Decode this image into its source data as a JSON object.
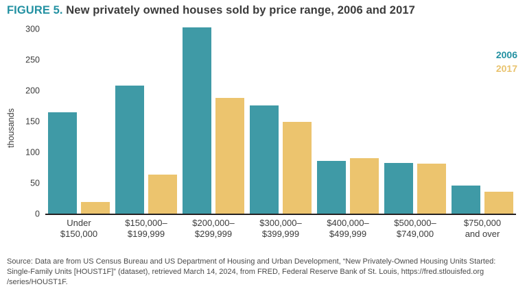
{
  "title": {
    "prefix": "FIGURE 5.",
    "text": " New privately owned houses sold by price range, 2006 and 2017"
  },
  "colors": {
    "teal": "#3f9aa6",
    "gold": "#ecc46e",
    "axis": "#231f20"
  },
  "legend": [
    {
      "label": "2006",
      "color": "#2391a2"
    },
    {
      "label": "2017",
      "color": "#e9c36e"
    }
  ],
  "chart_data": {
    "type": "bar",
    "title": "New privately owned houses sold by price range, 2006 and 2017",
    "ylabel": "thousands",
    "xlabel": "",
    "ylim": [
      0,
      300
    ],
    "yticks": [
      0,
      50,
      100,
      150,
      200,
      250,
      300
    ],
    "grid": false,
    "legend_position": "top-right",
    "categories": [
      "Under\n$150,000",
      "$150,000–\n$199,999",
      "$200,000–\n$299,999",
      "$300,000–\n$399,999",
      "$400,000–\n$499,999",
      "$500,000–\n$749,000",
      "$750,000\nand over"
    ],
    "series": [
      {
        "name": "2006",
        "color": "#3f9aa6",
        "values": [
          164,
          208,
          302,
          176,
          86,
          82,
          45
        ]
      },
      {
        "name": "2017",
        "color": "#ecc46e",
        "values": [
          19,
          63,
          188,
          149,
          90,
          81,
          35
        ]
      }
    ]
  },
  "source": "Source: Data are from US Census Bureau and US Department of Housing and Urban Development, “New Privately-Owned Housing Units Started: Single-Family Units [HOUST1F]” (dataset), retrieved March 14, 2024, from FRED, Federal Reserve Bank of St. Louis, https://fred.stlouisfed.org /series/HOUST1F."
}
